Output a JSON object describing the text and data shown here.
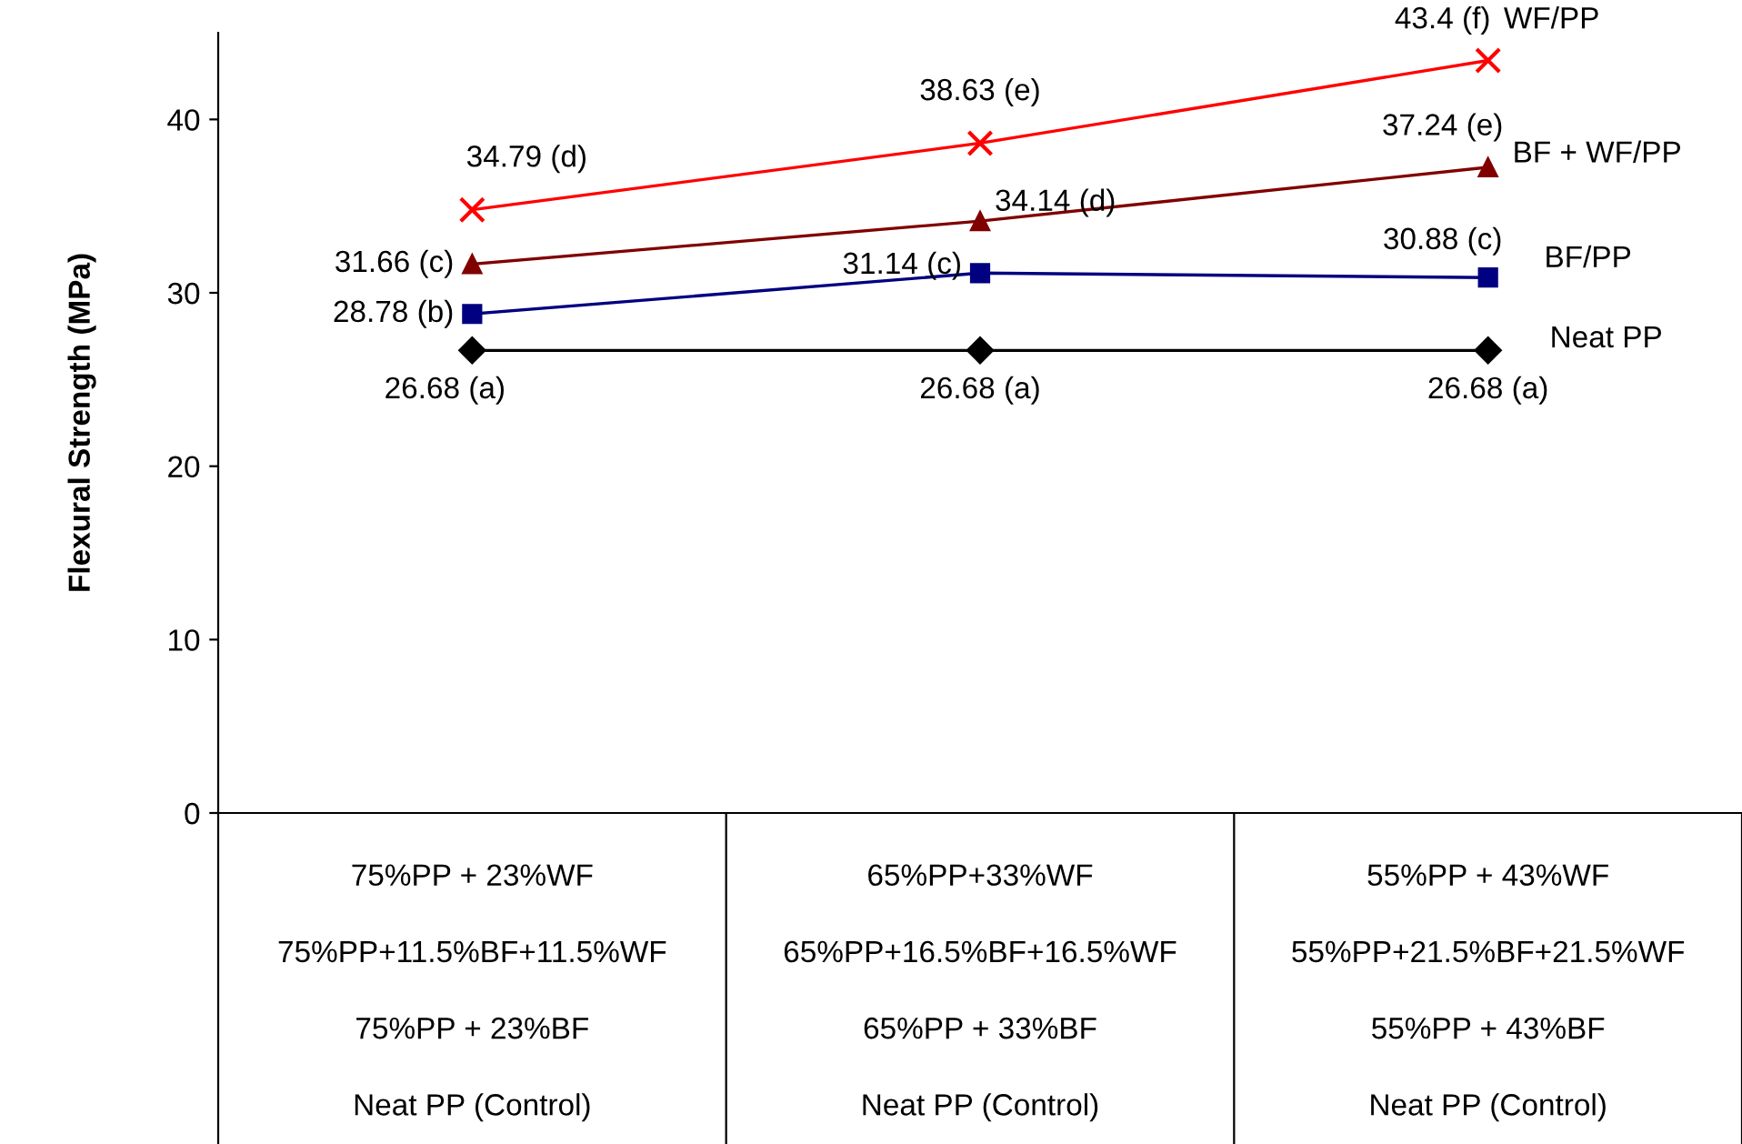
{
  "chart_data": {
    "type": "line",
    "ylabel": "Flexural Strength (MPa)",
    "categories": [
      "75%PP + 23%WF\n75%PP+11.5%BF+11.5%WF\n75%PP + 23%BF\nNeat PP (Control)",
      "65%PP+33%WF\n65%PP+16.5%BF+16.5%WF\n65%PP + 33%BF\nNeat PP (Control)",
      "55%PP + 43%WF\n55%PP+21.5%BF+21.5%WF\n55%PP + 43%BF\nNeat PP (Control)"
    ],
    "series": [
      {
        "name": "WF/PP",
        "color": "#ff0000",
        "marker": "cross",
        "values": [
          34.79,
          38.63,
          43.4
        ],
        "value_labels": [
          "34.79 (d)",
          "38.63 (e)",
          "43.4 (f)"
        ]
      },
      {
        "name": "BF + WF/PP",
        "color": "#800000",
        "marker": "triangle",
        "values": [
          31.66,
          34.14,
          37.24
        ],
        "value_labels": [
          "31.66 (c)",
          "34.14 (d)",
          "37.24 (e)"
        ]
      },
      {
        "name": "BF/PP",
        "color": "#000080",
        "marker": "square",
        "values": [
          28.78,
          31.14,
          30.88
        ],
        "value_labels": [
          "28.78 (b)",
          "31.14 (c)",
          "30.88 (c)"
        ]
      },
      {
        "name": "Neat PP",
        "color": "#000000",
        "marker": "diamond",
        "values": [
          26.68,
          26.68,
          26.68
        ],
        "value_labels": [
          "26.68 (a)",
          "26.68 (a)",
          "26.68 (a)"
        ]
      }
    ],
    "ylim": [
      0,
      45
    ],
    "yticks": [
      0,
      10,
      20,
      30,
      40
    ],
    "grid": false,
    "legend": false
  }
}
